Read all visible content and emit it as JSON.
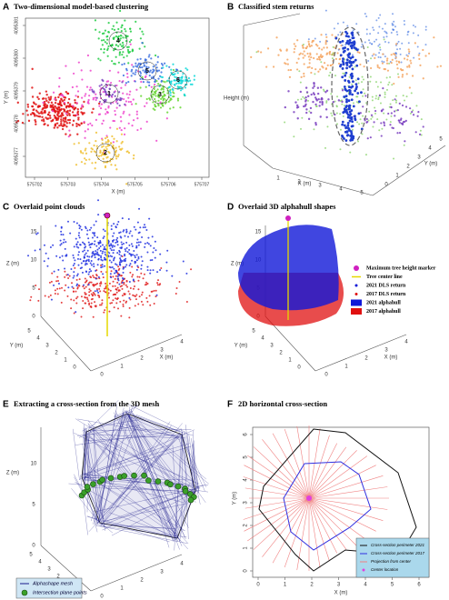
{
  "panels": [
    {
      "label": "A",
      "title": "Two-dimensional model-based clustering",
      "x_label": "X (m)",
      "y_label": "Y (m)",
      "x_ticks": [
        575702,
        575703,
        575704,
        575705,
        575706,
        575707
      ],
      "y_ticks": [
        4095377,
        4095378,
        4095379,
        4095380,
        4095381
      ],
      "cluster_labels": [
        "1",
        "2",
        "3",
        "4",
        "5",
        "6"
      ]
    },
    {
      "label": "B",
      "title": "Classified stem returns",
      "z_label": "Height (m)",
      "x_label": "X (m)",
      "y_label": "Y (m)",
      "x_ticks": [
        1,
        2,
        3,
        4,
        5
      ],
      "y_ticks": [
        0,
        1,
        2,
        3,
        4,
        5
      ]
    },
    {
      "label": "C",
      "title": "Overlaid point clouds",
      "z_label": "Z (m)",
      "x_label": "X (m)",
      "y_label": "Y (m)",
      "z_ticks": [
        0,
        5,
        10,
        15
      ],
      "x_ticks": [
        0,
        1,
        2,
        3,
        4
      ],
      "y_ticks": [
        0,
        1,
        2,
        3,
        4,
        5
      ]
    },
    {
      "label": "D",
      "title": "Overlaid 3D alphahull shapes",
      "z_label": "Z (m)",
      "x_label": "X (m)",
      "y_label": "Y (m)",
      "z_ticks": [
        0,
        5,
        10,
        15
      ],
      "x_ticks": [
        0,
        1,
        2,
        3,
        4
      ],
      "y_ticks": [
        0,
        1,
        2,
        3,
        4,
        5
      ],
      "legend": [
        "Maximum tree height marker",
        "Tree center line",
        "2021 DLS return",
        "2017 DLS return",
        "2021 alphahull",
        "2017 alphahull"
      ]
    },
    {
      "label": "E",
      "title": "Extracting a cross-section from the 3D mesh",
      "z_label": "Z (m)",
      "z_ticks": [
        0,
        5,
        10
      ],
      "x_ticks": [
        0,
        1,
        2,
        3,
        4
      ],
      "y_ticks": [
        0,
        1,
        2,
        3,
        4,
        5
      ],
      "legend": [
        "Alphashape mesh",
        "Intersection plane points"
      ]
    },
    {
      "label": "F",
      "title": "2D horizontal cross-section",
      "x_label": "X (m)",
      "y_label": "Y (m)",
      "x_ticks": [
        0,
        1,
        2,
        3,
        4,
        5,
        6
      ],
      "y_ticks": [
        0,
        1,
        2,
        3,
        4,
        5,
        6
      ],
      "legend": [
        "Cross-section perimeter 2021",
        "Cross-section perimeter 2017",
        "Projection from center",
        "Center location"
      ]
    }
  ]
}
